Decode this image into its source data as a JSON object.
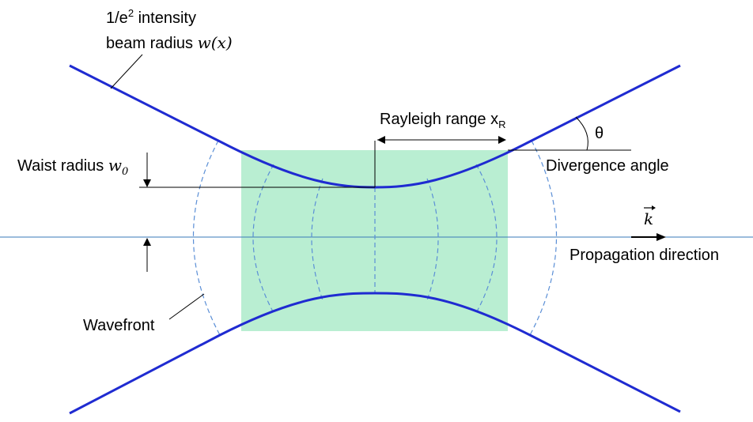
{
  "colors": {
    "beam": "#1f2bd1",
    "rayleigh_fill": "#b9eed2",
    "wavefront": "#5b8fd6",
    "axis": "#3a7ab8",
    "annotation": "#000000"
  },
  "labels": {
    "intensity_line1_pre": "1/e",
    "intensity_line1_sup": "2",
    "intensity_line1_post": " intensity",
    "beam_radius_text": "beam radius ",
    "beam_radius_symbol": "w(x)",
    "rayleigh_text": "Rayleigh range x",
    "rayleigh_sub": "R",
    "theta": "θ",
    "divergence": "Divergence angle",
    "waist_text": "Waist radius  ",
    "waist_symbol": "w",
    "waist_sub": "0",
    "k_vector": "k",
    "propagation": "Propagation direction",
    "wavefront": "Wavefront"
  },
  "icons": {
    "vector_arrow": "right-arrow-over-k"
  }
}
